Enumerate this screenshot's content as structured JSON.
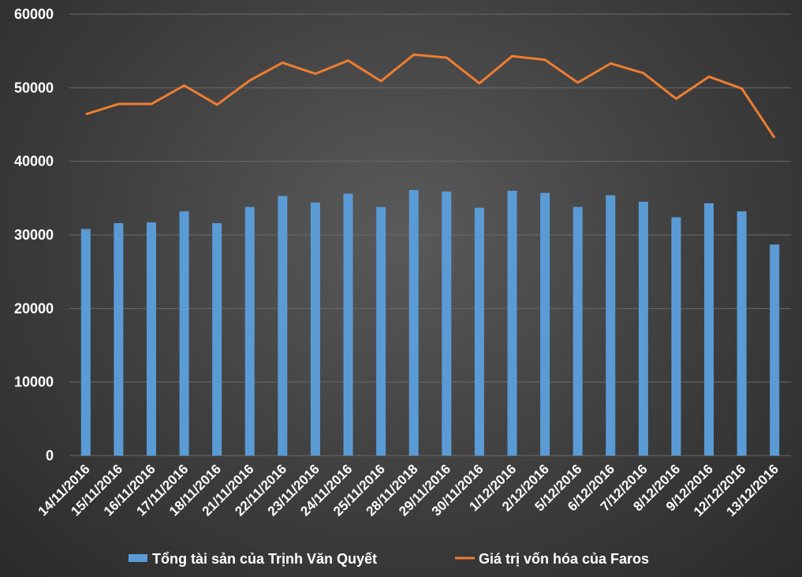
{
  "chart_data": {
    "type": "bar+line",
    "categories": [
      "14/11/2016",
      "15/11/2016",
      "16/11/2016",
      "17/11/2016",
      "18/11/2016",
      "21/11/2016",
      "22/11/2016",
      "23/11/2016",
      "24/11/2016",
      "25/11/2016",
      "28/11/2018",
      "29/11/2016",
      "30/11/2016",
      "1/12/2016",
      "2/12/2016",
      "5/12/2016",
      "6/12/2016",
      "7/12/2016",
      "8/12/2016",
      "9/12/2016",
      "12/12/2016",
      "13/12/2016"
    ],
    "series": [
      {
        "name": "Tổng tài sản của Trịnh Văn Quyết",
        "type": "bar",
        "color": "#5b9bd5",
        "values": [
          30800,
          31600,
          31700,
          33200,
          31600,
          33800,
          35300,
          34400,
          35600,
          33800,
          36100,
          35900,
          33700,
          36000,
          35700,
          33800,
          35400,
          34500,
          32400,
          34300,
          33200,
          28700
        ]
      },
      {
        "name": "Giá trị vốn hóa của Faros",
        "type": "line",
        "color": "#ed7d31",
        "values": [
          46400,
          47800,
          47800,
          50300,
          47700,
          51000,
          53400,
          51900,
          53700,
          50900,
          54500,
          54100,
          50600,
          54300,
          53800,
          50700,
          53300,
          52000,
          48500,
          51500,
          49900,
          43200
        ]
      }
    ],
    "ylim": [
      0,
      60000
    ],
    "yticks": [
      "0",
      "10000",
      "20000",
      "30000",
      "40000",
      "50000",
      "60000"
    ],
    "grid": true,
    "legend": "bottom"
  }
}
